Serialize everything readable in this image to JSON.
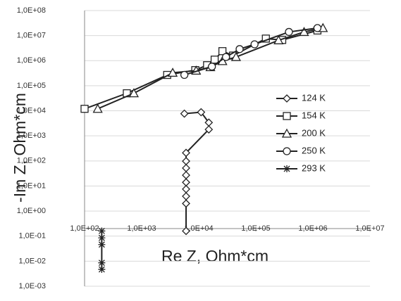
{
  "chart_data": {
    "type": "scatter-line",
    "x_label": "Re Z, Ohm*cm",
    "y_label": "-Im Z, Ohm*cm",
    "log_x": true,
    "log_y": true,
    "grid": true,
    "xlim": [
      100,
      10000000
    ],
    "ylim": [
      0.001,
      100000000
    ],
    "xticks": [
      {
        "value": 100,
        "label": "1,0E+02"
      },
      {
        "value": 1000,
        "label": "1,0E+03"
      },
      {
        "value": 10000,
        "label": "1,0E+04"
      },
      {
        "value": 100000,
        "label": "1,0E+05"
      },
      {
        "value": 1000000,
        "label": "1,0E+06"
      },
      {
        "value": 10000000,
        "label": "1,0E+07"
      }
    ],
    "yticks": [
      {
        "value": 100000000,
        "label": "1,0E+08"
      },
      {
        "value": 10000000,
        "label": "1,0E+07"
      },
      {
        "value": 1000000,
        "label": "1,0E+06"
      },
      {
        "value": 100000,
        "label": "1,0E+05"
      },
      {
        "value": 10000,
        "label": "1,0E+04"
      },
      {
        "value": 1000,
        "label": "1,0E+03"
      },
      {
        "value": 100,
        "label": "1,0E+02"
      },
      {
        "value": 10,
        "label": "1,0E+01"
      },
      {
        "value": 1,
        "label": "1,0E+00"
      },
      {
        "value": 0.1,
        "label": "1,0E-01"
      },
      {
        "value": 0.01,
        "label": "1,0E-02"
      },
      {
        "value": 0.001,
        "label": "1,0E-03"
      }
    ],
    "legend": "right",
    "series": [
      {
        "name": "124 K",
        "color": "#222",
        "marker": "diamond",
        "x": [
          5600,
          11000,
          15000,
          15000,
          6000,
          6000,
          6000,
          6000,
          6000,
          6000,
          6000,
          6000,
          6000
        ],
        "values": [
          7700,
          8800,
          3400,
          1800,
          210,
          98,
          52,
          27,
          14,
          7.5,
          3.9,
          2.0,
          0.16
        ]
      },
      {
        "name": "154 K",
        "color": "#222",
        "marker": "square",
        "x": [
          100,
          550,
          2800,
          8700,
          14000,
          19000,
          26000,
          40000,
          150000,
          290000,
          1200000
        ],
        "values": [
          12000,
          50000,
          270000,
          420000,
          660000,
          1100000,
          2400000,
          1600000,
          7600000,
          6700000,
          16000000
        ]
      },
      {
        "name": "200 K",
        "color": "#222",
        "marker": "triangle",
        "x": [
          170,
          730,
          3500,
          9000,
          16000,
          26000,
          45000,
          250000,
          700000,
          1500000
        ],
        "values": [
          12000,
          50000,
          330000,
          400000,
          550000,
          960000,
          1400000,
          6500000,
          14000000,
          20000000
        ]
      },
      {
        "name": "250 K",
        "color": "#222",
        "marker": "circle",
        "x": [
          5600,
          17000,
          30000,
          52000,
          95000,
          380000,
          1200000
        ],
        "values": [
          270000,
          580000,
          1400000,
          2900000,
          4500000,
          14000000,
          20000000
        ]
      },
      {
        "name": "293 K",
        "color": "#222",
        "marker": "asterisk",
        "x": [
          200,
          200,
          200,
          200,
          200
        ],
        "values": [
          0.16,
          0.085,
          0.046,
          0.0086,
          0.0047
        ]
      }
    ]
  }
}
